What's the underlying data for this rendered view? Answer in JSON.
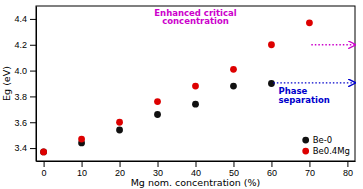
{
  "chart_data": {
    "type": "scatter",
    "xlabel": "Mg nom. concentration (%)",
    "ylabel": "Eg (eV)",
    "series": [
      {
        "name": "Be-0",
        "color": "#111111",
        "marker": "circle",
        "x": [
          0,
          10,
          20,
          30,
          40,
          50,
          60
        ],
        "values": [
          3.37,
          3.44,
          3.54,
          3.66,
          3.74,
          3.88,
          3.9
        ]
      },
      {
        "name": "Be0.4Mg",
        "color": "#dd0000",
        "marker": "circle",
        "x": [
          0,
          10,
          20,
          30,
          40,
          50,
          60,
          70
        ],
        "values": [
          3.37,
          3.47,
          3.6,
          3.76,
          3.88,
          4.01,
          4.2,
          4.37
        ]
      }
    ],
    "xlim": [
      -2,
      82
    ],
    "ylim": [
      3.3,
      4.5
    ],
    "xticks": [
      0,
      10,
      20,
      30,
      40,
      50,
      60,
      70,
      80
    ],
    "yticks": [
      3.4,
      3.6,
      3.8,
      {
        "value": 4,
        "label": "4.0"
      },
      4.2,
      4.4
    ],
    "annotations": [
      {
        "text": "Enhanced critical\nconcentration",
        "color": "#cc00cc",
        "arrow": {
          "x": [
            70.5,
            82
          ],
          "y": 4.2
        }
      },
      {
        "text": "Phase\nseparation",
        "color": "#0000cc",
        "arrow": {
          "x": [
            60.5,
            82
          ],
          "y": 3.905
        }
      }
    ],
    "legend": "lower right"
  }
}
